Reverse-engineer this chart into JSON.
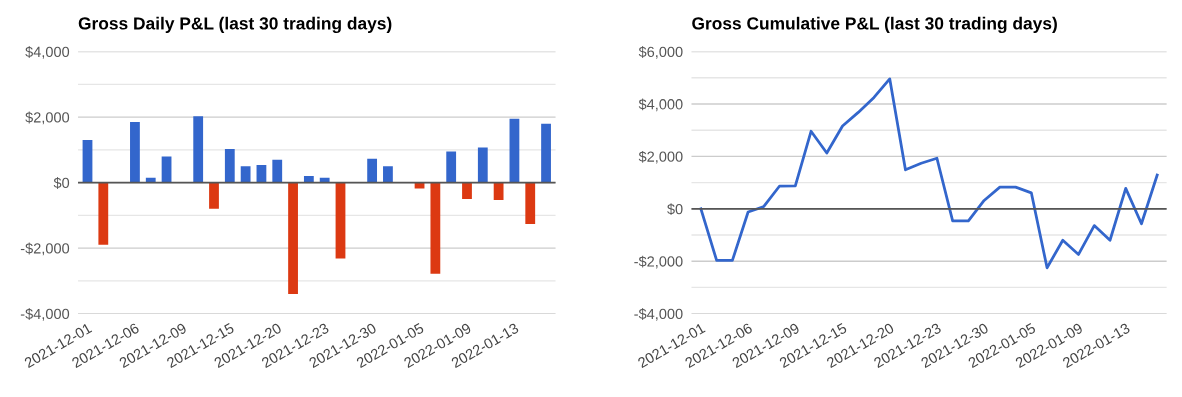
{
  "chart_data": [
    {
      "type": "bar",
      "title": "Gross Daily P&L (last 30 trading days)",
      "categories": [
        "2021-12-01",
        null,
        null,
        "2021-12-06",
        null,
        null,
        "2021-12-09",
        null,
        null,
        "2021-12-15",
        null,
        null,
        "2021-12-20",
        null,
        null,
        "2021-12-23",
        null,
        null,
        "2021-12-30",
        null,
        null,
        "2022-01-05",
        null,
        null,
        "2022-01-09",
        null,
        null,
        "2022-01-13",
        null,
        null
      ],
      "values": [
        1300,
        -1900,
        0,
        1850,
        150,
        800,
        0,
        2030,
        -800,
        1030,
        500,
        540,
        700,
        -3400,
        200,
        150,
        -2320,
        0,
        730,
        500,
        0,
        -180,
        -2780,
        950,
        -500,
        1070,
        -530,
        1950,
        -1260,
        1800
      ],
      "colors": [
        "#3366cc",
        "#dc3912",
        "#3366cc",
        "#3366cc",
        "#3366cc",
        "#3366cc",
        "#3366cc",
        "#3366cc",
        "#dc3912",
        "#3366cc",
        "#3366cc",
        "#3366cc",
        "#3366cc",
        "#dc3912",
        "#3366cc",
        "#3366cc",
        "#dc3912",
        "#3366cc",
        "#3366cc",
        "#3366cc",
        "#3366cc",
        "#dc3912",
        "#dc3912",
        "#3366cc",
        "#dc3912",
        "#3366cc",
        "#dc3912",
        "#3366cc",
        "#dc3912",
        "#3366cc"
      ],
      "ylim": [
        -4000,
        4000
      ],
      "yticks": [
        {
          "value": -4000,
          "label": "-$4,000"
        },
        {
          "value": -3000,
          "label": null
        },
        {
          "value": -2000,
          "label": "-$2,000"
        },
        {
          "value": -1000,
          "label": null
        },
        {
          "value": 0,
          "label": "$0"
        },
        {
          "value": 1000,
          "label": null
        },
        {
          "value": 2000,
          "label": "$2,000"
        },
        {
          "value": 3000,
          "label": null
        },
        {
          "value": 4000,
          "label": "$4,000"
        }
      ],
      "ref_lines": [
        {
          "axis": "y",
          "value": 0,
          "color": "#555555"
        }
      ],
      "grid": "y"
    },
    {
      "type": "line",
      "title": "Gross Cumulative P&L (last 30 trading days)",
      "categories": [
        "2021-12-01",
        null,
        null,
        "2021-12-06",
        null,
        null,
        "2021-12-09",
        null,
        null,
        "2021-12-15",
        null,
        null,
        "2021-12-20",
        null,
        null,
        "2021-12-23",
        null,
        null,
        "2021-12-30",
        null,
        null,
        "2022-01-05",
        null,
        null,
        "2022-01-09",
        null,
        null,
        "2022-01-13",
        null,
        null
      ],
      "series": [
        {
          "color": "#3366cc",
          "values": [
            0,
            -1970,
            -1970,
            -120,
            90,
            870,
            880,
            2960,
            2130,
            3160,
            3680,
            4250,
            4960,
            1490,
            1740,
            1930,
            -460,
            -460,
            320,
            830,
            830,
            610,
            -2250,
            -1200,
            -1740,
            -640,
            -1200,
            780,
            -570,
            1290
          ]
        }
      ],
      "ylim": [
        -4000,
        6000
      ],
      "yticks": [
        {
          "value": -4000,
          "label": "-$4,000"
        },
        {
          "value": -3000,
          "label": null
        },
        {
          "value": -2000,
          "label": "-$2,000"
        },
        {
          "value": -1000,
          "label": null
        },
        {
          "value": 0,
          "label": "$0"
        },
        {
          "value": 1000,
          "label": null
        },
        {
          "value": 2000,
          "label": "$2,000"
        },
        {
          "value": 3000,
          "label": null
        },
        {
          "value": 4000,
          "label": "$4,000"
        },
        {
          "value": 5000,
          "label": null
        },
        {
          "value": 6000,
          "label": "$6,000"
        }
      ],
      "ref_lines": [
        {
          "axis": "y",
          "value": 0,
          "color": "#555555"
        }
      ],
      "grid": "y",
      "marker": "none",
      "line_style": "solid"
    }
  ]
}
